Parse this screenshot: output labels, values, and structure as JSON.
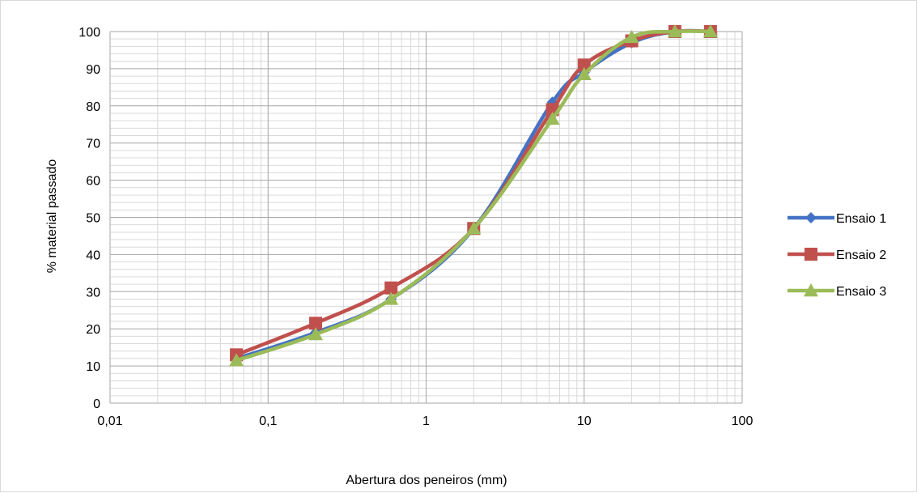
{
  "chart_data": {
    "type": "line",
    "title": "",
    "xlabel": "Abertura dos peneiros (mm)",
    "ylabel": "% material passado",
    "x_scale": "log",
    "xlim": [
      0.01,
      100
    ],
    "ylim": [
      0,
      100
    ],
    "x_ticks": [
      "0,01",
      "0,1",
      "1",
      "10",
      "100"
    ],
    "y_ticks": [
      "0",
      "10",
      "20",
      "30",
      "40",
      "50",
      "60",
      "70",
      "80",
      "90",
      "100"
    ],
    "grid": true,
    "legend_position": "right",
    "x": [
      0.063,
      0.2,
      0.6,
      2,
      6.3,
      10,
      20,
      37.5,
      63
    ],
    "series": [
      {
        "name": "Ensaio 1",
        "color": "#4472C4",
        "marker": "diamond",
        "values": [
          12,
          19,
          28,
          47,
          81,
          89,
          97,
          100,
          100
        ]
      },
      {
        "name": "Ensaio 2",
        "color": "#C0504D",
        "marker": "square",
        "values": [
          13,
          21.5,
          31,
          47,
          79,
          91,
          97.5,
          100,
          100
        ]
      },
      {
        "name": "Ensaio 3",
        "color": "#9BBB59",
        "marker": "triangle",
        "values": [
          11.5,
          18.5,
          28,
          47,
          76.5,
          88.5,
          98.5,
          100,
          100
        ]
      }
    ]
  }
}
